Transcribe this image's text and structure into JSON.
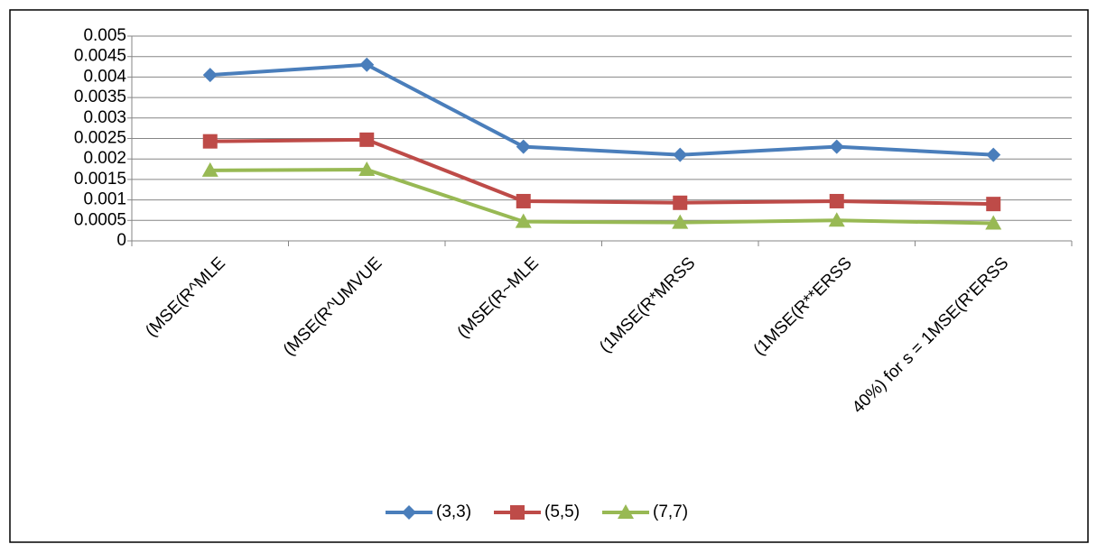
{
  "chart_data": {
    "type": "line",
    "categories": [
      "(MSE(R^MLE",
      "(MSE(R^UMVUE",
      "(MSE(R~MLE",
      "(1MSE(R*MRSS",
      "(1MSE(R**ERSS",
      "40%) for s = 1MSE(R'ERSS"
    ],
    "series": [
      {
        "name": "(3,3)",
        "color": "#4a7ebb",
        "marker": "diamond",
        "values": [
          0.00405,
          0.0043,
          0.0023,
          0.0021,
          0.0023,
          0.0021
        ]
      },
      {
        "name": "(5,5)",
        "color": "#be4b48",
        "marker": "square",
        "values": [
          0.00243,
          0.00247,
          0.00097,
          0.00093,
          0.00097,
          0.0009
        ]
      },
      {
        "name": "(7,7)",
        "color": "#98b954",
        "marker": "triangle",
        "values": [
          0.00172,
          0.00174,
          0.00047,
          0.00045,
          0.0005,
          0.00043
        ]
      }
    ],
    "ylim": [
      0,
      0.005
    ],
    "yticks": [
      0,
      0.0005,
      0.001,
      0.0015,
      0.002,
      0.0025,
      0.003,
      0.0035,
      0.004,
      0.0045,
      0.005
    ],
    "grid": true,
    "legend": "bottom"
  }
}
